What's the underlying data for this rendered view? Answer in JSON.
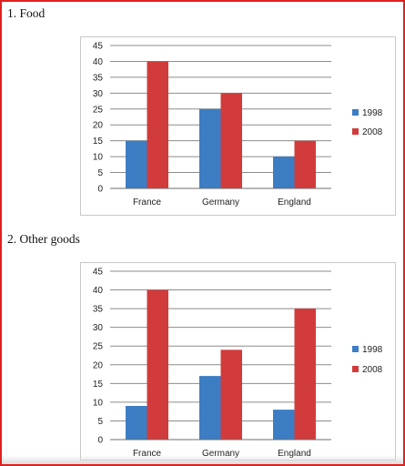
{
  "sections": [
    {
      "heading": "1.   Food"
    },
    {
      "heading": "2.   Other goods"
    }
  ],
  "colors": {
    "series_1998": "#3c7dc4",
    "series_2008": "#d23b3b",
    "gridline": "#8c8c8c",
    "frame": "#e02020"
  },
  "chart_data": [
    {
      "type": "bar",
      "title": "",
      "xlabel": "",
      "ylabel": "",
      "categories": [
        "France",
        "Germany",
        "England"
      ],
      "series": [
        {
          "name": "1998",
          "values": [
            15,
            25,
            10
          ]
        },
        {
          "name": "2008",
          "values": [
            40,
            30,
            15
          ]
        }
      ],
      "ylim": [
        0,
        45
      ],
      "yticks": [
        "0",
        "5",
        "10",
        "15",
        "20",
        "25",
        "30",
        "35",
        "40",
        "45"
      ],
      "grid": true,
      "legend": "right"
    },
    {
      "type": "bar",
      "title": "",
      "xlabel": "",
      "ylabel": "",
      "categories": [
        "France",
        "Germany",
        "England"
      ],
      "series": [
        {
          "name": "1998",
          "values": [
            9,
            17,
            8
          ]
        },
        {
          "name": "2008",
          "values": [
            40,
            24,
            35
          ]
        }
      ],
      "ylim": [
        0,
        45
      ],
      "yticks": [
        "0",
        "5",
        "10",
        "15",
        "20",
        "25",
        "30",
        "35",
        "40",
        "45"
      ],
      "grid": true,
      "legend": "right"
    }
  ]
}
